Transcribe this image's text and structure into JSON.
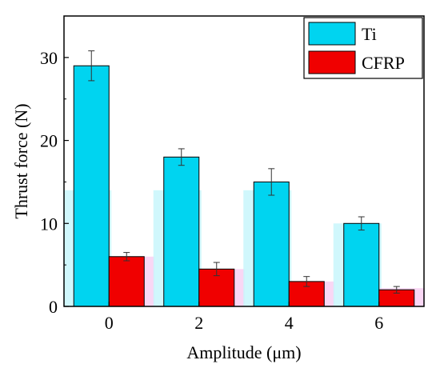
{
  "chart_data": {
    "type": "bar",
    "xlabel": "Amplitude (μm)",
    "ylabel": "Thrust force (N)",
    "ylim": [
      0,
      35
    ],
    "yticks": [
      0,
      10,
      20,
      30
    ],
    "categories": [
      "0",
      "2",
      "4",
      "6"
    ],
    "grid": false,
    "legend_position": "top-right",
    "series": [
      {
        "name": "Ti",
        "color": "#00D4F0",
        "values": [
          29,
          18,
          15,
          10
        ],
        "errors": [
          1.8,
          1.0,
          1.6,
          0.8
        ],
        "shadow_values": [
          14,
          14,
          14,
          10
        ]
      },
      {
        "name": "CFRP",
        "color": "#F00000",
        "values": [
          6,
          4.5,
          3,
          2
        ],
        "errors": [
          0.5,
          0.8,
          0.6,
          0.4
        ],
        "shadow_values": [
          6,
          4.5,
          3,
          2.2
        ]
      }
    ]
  }
}
